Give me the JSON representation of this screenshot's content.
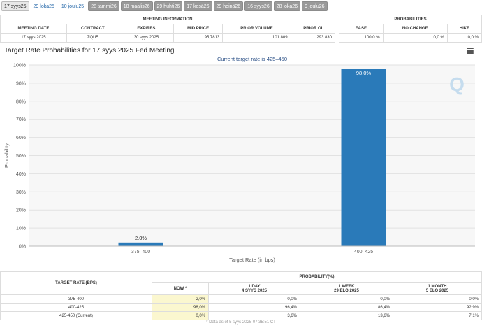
{
  "tabs": [
    {
      "label": "17 syys25",
      "style": "active"
    },
    {
      "label": "29 loka25",
      "style": "light"
    },
    {
      "label": "10 joulu25",
      "style": "light"
    },
    {
      "label": "28 tammi26",
      "style": "dark"
    },
    {
      "label": "18 maalis26",
      "style": "dark"
    },
    {
      "label": "29 huhti26",
      "style": "dark"
    },
    {
      "label": "17 kesä26",
      "style": "dark"
    },
    {
      "label": "29 heinä26",
      "style": "dark"
    },
    {
      "label": "16 syys26",
      "style": "dark"
    },
    {
      "label": "28 loka26",
      "style": "dark"
    },
    {
      "label": "9 joulu26",
      "style": "dark"
    }
  ],
  "meeting_info": {
    "title": "MEETING INFORMATION",
    "headers": [
      "MEETING DATE",
      "CONTRACT",
      "EXPIRES",
      "MID PRICE",
      "PRIOR VOLUME",
      "PRIOR OI"
    ],
    "values": [
      "17 syys 2025",
      "ZQU5",
      "30 syys 2025",
      "95,7813",
      "101 809",
      "293 830"
    ]
  },
  "probabilities": {
    "title": "PROBABILITIES",
    "headers": [
      "EASE",
      "NO CHANGE",
      "HIKE"
    ],
    "values": [
      "100,0 %",
      "0,0 %",
      "0,0 %"
    ]
  },
  "chart_title": "Target Rate Probabilities for 17 syys 2025 Fed Meeting",
  "chart_data": {
    "type": "bar",
    "title": "Target Rate Probabilities for 17 syys 2025 Fed Meeting",
    "subtitle": "Current target rate is 425–450",
    "xlabel": "Target Rate (in bps)",
    "ylabel": "Probability",
    "categories": [
      "375–400",
      "400–425"
    ],
    "values": [
      2.0,
      98.0
    ],
    "data_labels": [
      "2.0%",
      "98.0%"
    ],
    "ylim": [
      0,
      100
    ],
    "yticks": [
      "0%",
      "10%",
      "20%",
      "30%",
      "40%",
      "50%",
      "60%",
      "70%",
      "80%",
      "90%",
      "100%"
    ],
    "bar_color": "#2a7ab9",
    "grid": true
  },
  "watermark": "Q",
  "bottom_table": {
    "col_rate": "TARGET RATE (BPS)",
    "group_title": "PROBABILITY(%)",
    "columns": [
      {
        "line1": "NOW *",
        "line2": ""
      },
      {
        "line1": "1 DAY",
        "line2": "4 SYYS 2025"
      },
      {
        "line1": "1 WEEK",
        "line2": "29 ELO 2025"
      },
      {
        "line1": "1 MONTH",
        "line2": "5 ELO 2025"
      }
    ],
    "rows": [
      {
        "rate": "375-400",
        "vals": [
          "2,0%",
          "0,0%",
          "0,0%",
          "0,0%"
        ]
      },
      {
        "rate": "400-425",
        "vals": [
          "98,0%",
          "96,4%",
          "86,4%",
          "92,9%"
        ]
      },
      {
        "rate": "425-450 (Current)",
        "vals": [
          "0,0%",
          "3,6%",
          "13,6%",
          "7,1%"
        ]
      }
    ]
  },
  "footnote": "* Data as of 5 syys 2025 07:35:51 CT"
}
